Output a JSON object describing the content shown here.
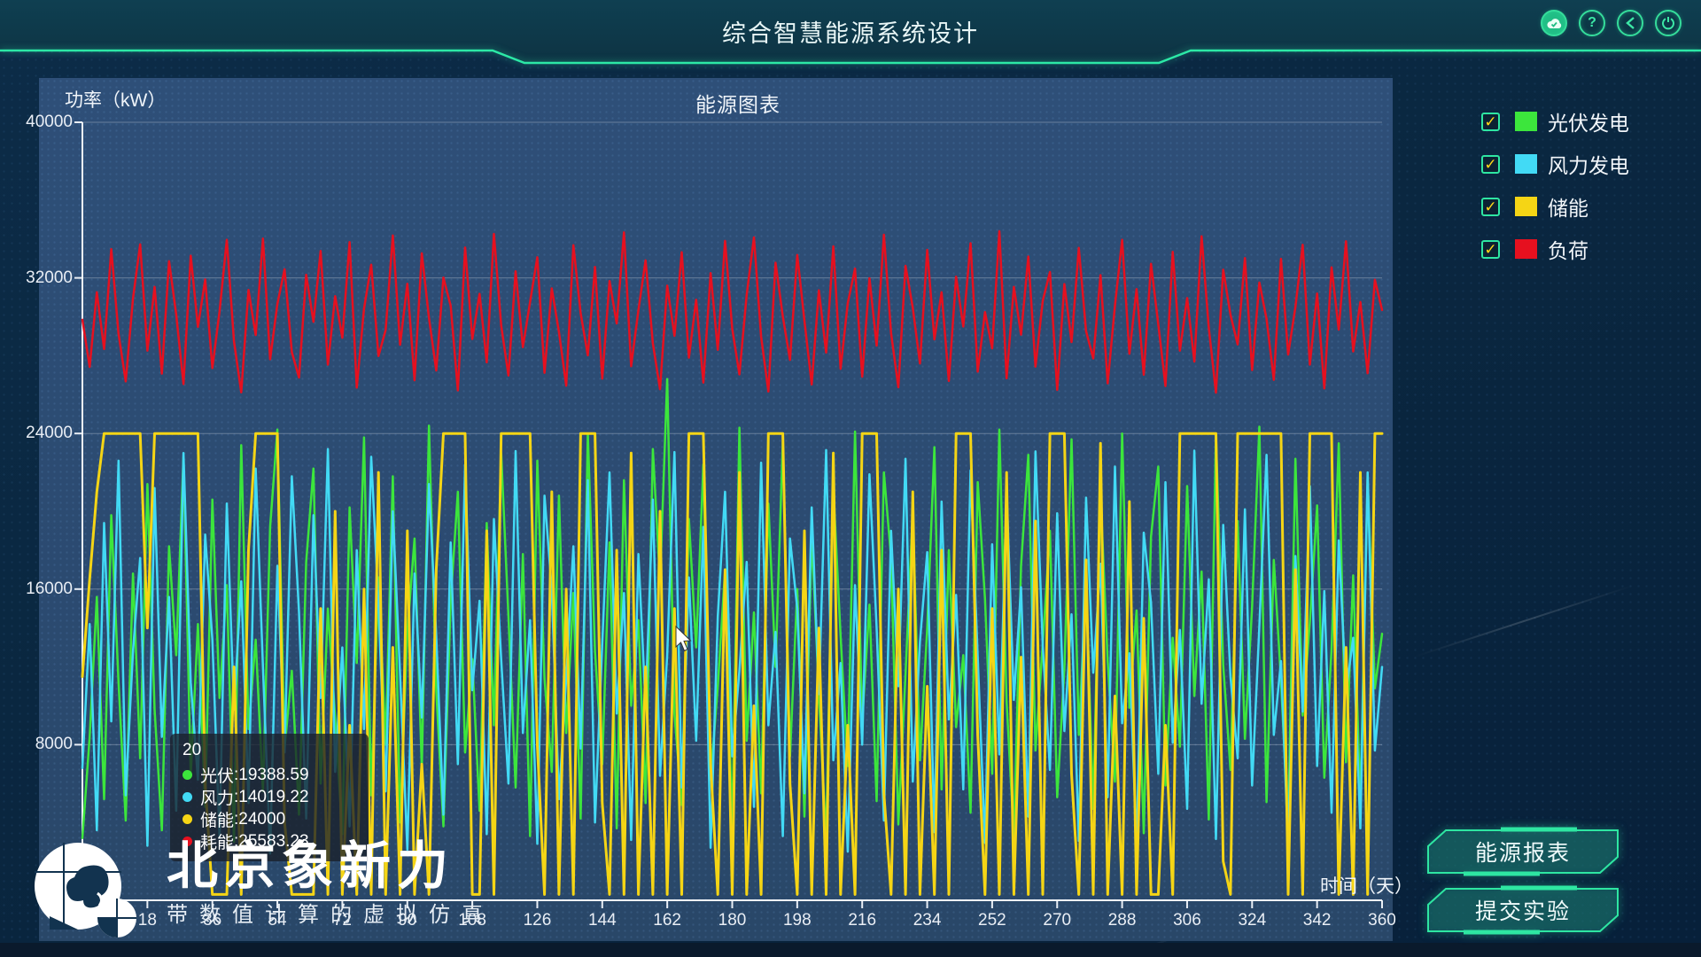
{
  "header": {
    "title": "综合智慧能源系统设计",
    "icons": [
      {
        "name": "cloud-sync-icon",
        "glyph": "☁"
      },
      {
        "name": "help-icon",
        "glyph": "?"
      },
      {
        "name": "back-icon",
        "glyph": "❮"
      },
      {
        "name": "power-icon",
        "glyph": "⏻"
      }
    ]
  },
  "chart": {
    "title": "能源图表",
    "y_axis": {
      "name": "功率（kW）",
      "ticks": [
        "40000",
        "32000",
        "24000",
        "16000",
        "8000",
        "0"
      ]
    },
    "x_axis": {
      "name": "时间（天）",
      "ticks": [
        "0",
        "18",
        "36",
        "54",
        "72",
        "90",
        "108",
        "126",
        "144",
        "162",
        "180",
        "198",
        "216",
        "234",
        "252",
        "270",
        "288",
        "306",
        "324",
        "342",
        "360"
      ]
    },
    "legend": [
      {
        "label": "光伏发电",
        "color": "#3ce63c",
        "check": "✓"
      },
      {
        "label": "风力发电",
        "color": "#42daf5",
        "check": "✓"
      },
      {
        "label": "储能",
        "color": "#f5d515",
        "check": "✓"
      },
      {
        "label": "负荷",
        "color": "#e6101f",
        "check": "✓"
      }
    ]
  },
  "tooltip": {
    "title": "20",
    "colon": " : ",
    "rows": [
      {
        "label": "光伏",
        "value": "19388.59",
        "color": "#3ce63c"
      },
      {
        "label": "风力",
        "value": "14019.22",
        "color": "#42daf5"
      },
      {
        "label": "储能",
        "value": "24000",
        "color": "#f5d515"
      },
      {
        "label": "耗能",
        "value": "25583.23",
        "color": "#e6101f"
      }
    ]
  },
  "footer": {
    "brand": "北京象新力",
    "tagline": "带数值计算的虚拟仿真",
    "report_button": "能源报表",
    "submit_button": "提交实验"
  },
  "chart_data": {
    "type": "line",
    "title": "能源图表",
    "xlabel": "时间（天）",
    "ylabel": "功率（kW）",
    "x_start": 0,
    "x_step": 2,
    "x_end": 360,
    "ylim": [
      0,
      40000
    ],
    "grid": true,
    "legend_position": "right-top",
    "series": [
      {
        "name": "光伏发电",
        "color": "#3ce63c",
        "width": 2.5,
        "values": [
          3200,
          8400,
          15600,
          5200,
          19800,
          11200,
          4100,
          16800,
          7300,
          21400,
          9800,
          3600,
          18200,
          12600,
          22800,
          6400,
          14200,
          4800,
          20600,
          10400,
          16200,
          3000,
          23400,
          8800,
          13400,
          5600,
          19200,
          24200,
          7800,
          11800,
          4400,
          17400,
          22200,
          6000,
          15000,
          9400,
          3400,
          20200,
          12200,
          23800,
          5400,
          16600,
          8000,
          21800,
          4000,
          13800,
          18600,
          6800,
          24400,
          10800,
          3800,
          15400,
          21000,
          7600,
          12400,
          4600,
          19400,
          9000,
          23000,
          14600,
          5800,
          17800,
          3300,
          22600,
          11400,
          6600,
          20800,
          8600,
          15800,
          4200,
          24000,
          12800,
          7000,
          18400,
          3700,
          21600,
          10000,
          14400,
          5000,
          23200,
          16400,
          26800,
          9600,
          4900,
          19600,
          13000,
          22400,
          6200,
          11000,
          17000,
          3500,
          24300,
          8200,
          14800,
          5500,
          20400,
          12000,
          23600,
          7400,
          16000,
          4300,
          18800,
          10600,
          3100,
          21200,
          13600,
          6900,
          24100,
          9200,
          15200,
          5100,
          22000,
          17600,
          3900,
          11600,
          20000,
          7200,
          14000,
          23300,
          5700,
          18000,
          8900,
          12600,
          4500,
          21500,
          15500,
          6500,
          24200,
          10200,
          3250,
          17200,
          22900,
          7700,
          13200,
          19000,
          5300,
          11900,
          23700,
          8500,
          16300,
          4700,
          20900,
          12300,
          6100,
          24000,
          9900,
          14900,
          3450,
          18700,
          22300,
          5900,
          13500,
          7900,
          21300,
          10500,
          16900,
          4150,
          23900,
          12100,
          6700,
          19500,
          8300,
          15100,
          24350,
          5050,
          17500,
          11300,
          3650,
          22700,
          9500,
          14300,
          20300,
          6300,
          12900,
          23500,
          7100,
          16700,
          4950,
          21700,
          10900,
          13700
        ]
      },
      {
        "name": "风力发电",
        "color": "#42daf5",
        "width": 2.5,
        "values": [
          6800,
          14200,
          3600,
          19400,
          9200,
          22600,
          5400,
          12800,
          17600,
          2800,
          21200,
          8400,
          15600,
          4600,
          23000,
          11200,
          6200,
          18800,
          13400,
          3200,
          20400,
          9800,
          16400,
          5000,
          22200,
          12000,
          2400,
          17200,
          7600,
          21800,
          14800,
          4200,
          19800,
          10400,
          23200,
          6600,
          13000,
          3800,
          18000,
          8800,
          22800,
          15200,
          5600,
          20000,
          11600,
          2600,
          16800,
          9400,
          21400,
          13600,
          4400,
          18400,
          7000,
          22400,
          10800,
          15400,
          3400,
          19600,
          12400,
          6000,
          23100,
          8600,
          14400,
          2900,
          20800,
          16000,
          5200,
          11400,
          18200,
          7800,
          21600,
          4000,
          13200,
          22000,
          9600,
          15800,
          3100,
          17800,
          10000,
          20600,
          6400,
          12600,
          23050,
          5800,
          16600,
          8200,
          19200,
          2700,
          14600,
          21000,
          7400,
          11800,
          17400,
          4800,
          22500,
          9000,
          13800,
          3300,
          18600,
          15000,
          5500,
          20200,
          10600,
          23150,
          7200,
          12200,
          2500,
          16200,
          8000,
          21900,
          14000,
          4100,
          19000,
          11000,
          22700,
          6100,
          13300,
          17900,
          3500,
          20500,
          9300,
          15700,
          5700,
          22100,
          12500,
          2950,
          18300,
          7500,
          21100,
          10300,
          16100,
          4300,
          23080,
          13100,
          6700,
          19900,
          8700,
          14700,
          3050,
          20700,
          11700,
          17300,
          5300,
          22300,
          9100,
          12700,
          2750,
          18900,
          15300,
          6500,
          21500,
          8100,
          13900,
          4700,
          23120,
          10100,
          16500,
          3150,
          19300,
          11500,
          7300,
          20100,
          5900,
          14100,
          22900,
          8500,
          12300,
          2650,
          17700,
          9700,
          21300,
          6900,
          15900,
          4500,
          18500,
          10700,
          13500,
          3700,
          22000,
          7700,
          12000
        ]
      },
      {
        "name": "储能",
        "color": "#f5d515",
        "width": 3,
        "values": [
          11500,
          16500,
          21000,
          24000,
          24000,
          24000,
          24000,
          24000,
          24000,
          14000,
          24000,
          24000,
          24000,
          24000,
          24000,
          24000,
          24000,
          6000,
          300,
          300,
          300,
          12000,
          300,
          18000,
          24000,
          24000,
          24000,
          24000,
          4000,
          300,
          300,
          300,
          300,
          15000,
          300,
          20000,
          300,
          9000,
          300,
          16000,
          300,
          22000,
          300,
          13000,
          300,
          19000,
          300,
          7000,
          300,
          17000,
          24000,
          24000,
          24000,
          24000,
          300,
          300,
          19000,
          300,
          24000,
          24000,
          24000,
          24000,
          24000,
          8000,
          300,
          21000,
          300,
          16000,
          300,
          24000,
          24000,
          24000,
          5000,
          300,
          18000,
          300,
          23000,
          300,
          12000,
          300,
          20000,
          300,
          15000,
          300,
          24000,
          24000,
          24000,
          7000,
          300,
          17000,
          300,
          22000,
          300,
          10000,
          300,
          24000,
          24000,
          24000,
          6000,
          300,
          19000,
          300,
          14000,
          300,
          23000,
          300,
          9000,
          300,
          24000,
          24000,
          24000,
          5500,
          300,
          16000,
          300,
          21000,
          300,
          11000,
          300,
          18000,
          300,
          24000,
          24000,
          24000,
          8500,
          300,
          15000,
          300,
          22000,
          300,
          12500,
          300,
          19500,
          300,
          24000,
          24000,
          24000,
          6500,
          300,
          17500,
          300,
          23500,
          300,
          10500,
          300,
          20500,
          300,
          14500,
          300,
          300,
          9000,
          300,
          24000,
          24000,
          24000,
          24000,
          24000,
          24000,
          2000,
          300,
          24000,
          24000,
          24000,
          24000,
          24000,
          24000,
          24000,
          300,
          17000,
          300,
          24000,
          24000,
          24000,
          24000,
          300,
          13000,
          300,
          22000,
          300,
          24000,
          24000
        ]
      },
      {
        "name": "负荷",
        "color": "#e6101f",
        "width": 2.5,
        "values": [
          29850,
          27420,
          31260,
          28340,
          33480,
          29120,
          26680,
          30940,
          33720,
          28260,
          31540,
          27080,
          32860,
          30120,
          26540,
          33140,
          29480,
          31920,
          27360,
          30280,
          33960,
          28740,
          26120,
          31380,
          29060,
          34020,
          27820,
          30660,
          32440,
          28180,
          26880,
          32160,
          29740,
          33380,
          27540,
          31060,
          28920,
          33840,
          26360,
          30420,
          32680,
          27980,
          29320,
          34180,
          28560,
          31700,
          26740,
          33260,
          29940,
          27240,
          32020,
          30560,
          26220,
          33560,
          28860,
          31180,
          27660,
          34260,
          29560,
          26980,
          32340,
          28440,
          30760,
          33060,
          27120,
          31460,
          29220,
          26460,
          33680,
          30180,
          28020,
          32560,
          26820,
          31840,
          29660,
          34340,
          27460,
          30340,
          32900,
          28640,
          26280,
          31600,
          29020,
          33320,
          27900,
          30880,
          26620,
          32240,
          28300,
          33900,
          29380,
          27040,
          31120,
          34080,
          28980,
          26160,
          32780,
          30020,
          27780,
          33180,
          29800,
          26520,
          31360,
          28160,
          33620,
          27320,
          30700,
          32480,
          26920,
          31980,
          28520,
          34220,
          29160,
          26380,
          32620,
          30460,
          27600,
          33440,
          28840,
          31260,
          26700,
          32060,
          29500,
          33780,
          27180,
          30240,
          28380,
          34400,
          26840,
          31540,
          29080,
          33100,
          27440,
          30820,
          32300,
          26240,
          31680,
          28700,
          33540,
          29260,
          27860,
          32140,
          26580,
          30580,
          33960,
          28100,
          31420,
          27020,
          32720,
          29620,
          26440,
          33340,
          28260,
          30960,
          27700,
          34140,
          29440,
          26100,
          32420,
          30100,
          28580,
          33020,
          27260,
          31760,
          29900,
          26760,
          32980,
          28060,
          30500,
          33700,
          27540,
          31200,
          26320,
          32540,
          29340,
          33880,
          28220,
          30760,
          27100,
          31900,
          30350
        ]
      }
    ]
  }
}
